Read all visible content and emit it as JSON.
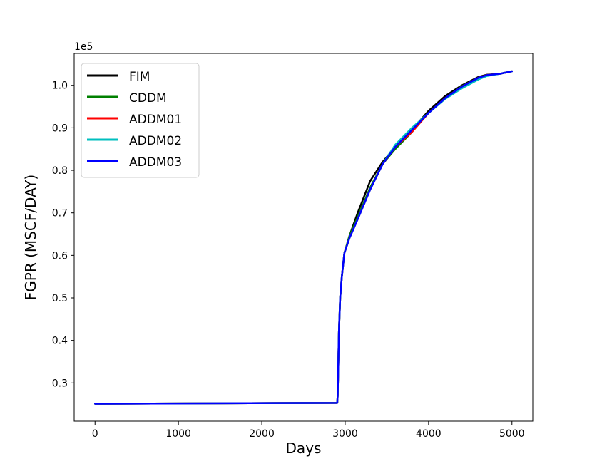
{
  "chart_data": {
    "type": "line",
    "xlabel": "Days",
    "ylabel": "FGPR  (MSCF/DAY)",
    "y_multiplier": "1e5",
    "xlim": [
      -250,
      5250
    ],
    "ylim": [
      0.21,
      1.075
    ],
    "xticks": [
      0,
      1000,
      2000,
      3000,
      4000,
      5000
    ],
    "xtick_labels": [
      "0",
      "1000",
      "2000",
      "3000",
      "4000",
      "5000"
    ],
    "yticks": [
      0.3,
      0.4,
      0.5,
      0.6,
      0.7,
      0.8,
      0.9,
      1.0
    ],
    "ytick_labels": [
      "0.3",
      "0.4",
      "0.5",
      "0.6",
      "0.7",
      "0.8",
      "0.9",
      "1.0"
    ],
    "grid": false,
    "legend_position": "top-left",
    "series": [
      {
        "name": "FIM",
        "color": "#000000",
        "points": [
          [
            0,
            0.251
          ],
          [
            2905,
            0.253
          ],
          [
            2910,
            0.27
          ],
          [
            2925,
            0.42
          ],
          [
            2940,
            0.5
          ],
          [
            2960,
            0.55
          ],
          [
            2990,
            0.605
          ],
          [
            3050,
            0.645
          ],
          [
            3150,
            0.7
          ],
          [
            3300,
            0.775
          ],
          [
            3450,
            0.82
          ],
          [
            3600,
            0.855
          ],
          [
            3800,
            0.895
          ],
          [
            4000,
            0.94
          ],
          [
            4200,
            0.975
          ],
          [
            4400,
            1.0
          ],
          [
            4600,
            1.02
          ],
          [
            4700,
            1.025
          ],
          [
            4850,
            1.027
          ],
          [
            5000,
            1.033
          ]
        ]
      },
      {
        "name": "CDDM",
        "color": "#008000",
        "points": [
          [
            0,
            0.251
          ],
          [
            2905,
            0.253
          ],
          [
            2910,
            0.27
          ],
          [
            2925,
            0.42
          ],
          [
            2940,
            0.5
          ],
          [
            2960,
            0.55
          ],
          [
            2990,
            0.605
          ],
          [
            3050,
            0.645
          ],
          [
            3150,
            0.69
          ],
          [
            3300,
            0.76
          ],
          [
            3450,
            0.815
          ],
          [
            3600,
            0.85
          ],
          [
            3800,
            0.89
          ],
          [
            4000,
            0.935
          ],
          [
            4200,
            0.97
          ],
          [
            4400,
            0.998
          ],
          [
            4600,
            1.018
          ],
          [
            4700,
            1.024
          ],
          [
            4850,
            1.027
          ],
          [
            5000,
            1.033
          ]
        ]
      },
      {
        "name": "ADDM01",
        "color": "#ff0000",
        "points": [
          [
            0,
            0.251
          ],
          [
            2905,
            0.253
          ],
          [
            2910,
            0.27
          ],
          [
            2925,
            0.42
          ],
          [
            2940,
            0.5
          ],
          [
            2960,
            0.55
          ],
          [
            2990,
            0.605
          ],
          [
            3050,
            0.64
          ],
          [
            3150,
            0.685
          ],
          [
            3300,
            0.755
          ],
          [
            3450,
            0.815
          ],
          [
            3600,
            0.855
          ],
          [
            3800,
            0.89
          ],
          [
            4000,
            0.935
          ],
          [
            4200,
            0.97
          ],
          [
            4400,
            0.997
          ],
          [
            4600,
            1.018
          ],
          [
            4700,
            1.024
          ],
          [
            4850,
            1.027
          ],
          [
            5000,
            1.033
          ]
        ]
      },
      {
        "name": "ADDM02",
        "color": "#00bfbf",
        "points": [
          [
            0,
            0.251
          ],
          [
            2905,
            0.253
          ],
          [
            2910,
            0.27
          ],
          [
            2925,
            0.42
          ],
          [
            2940,
            0.5
          ],
          [
            2960,
            0.55
          ],
          [
            2990,
            0.605
          ],
          [
            3050,
            0.64
          ],
          [
            3150,
            0.685
          ],
          [
            3300,
            0.755
          ],
          [
            3450,
            0.815
          ],
          [
            3600,
            0.86
          ],
          [
            3800,
            0.9
          ],
          [
            4000,
            0.935
          ],
          [
            4200,
            0.968
          ],
          [
            4400,
            0.993
          ],
          [
            4600,
            1.014
          ],
          [
            4700,
            1.022
          ],
          [
            4850,
            1.027
          ],
          [
            5000,
            1.033
          ]
        ]
      },
      {
        "name": "ADDM03",
        "color": "#0000ff",
        "points": [
          [
            0,
            0.251
          ],
          [
            2905,
            0.253
          ],
          [
            2910,
            0.27
          ],
          [
            2925,
            0.42
          ],
          [
            2940,
            0.5
          ],
          [
            2960,
            0.55
          ],
          [
            2990,
            0.605
          ],
          [
            3050,
            0.64
          ],
          [
            3150,
            0.685
          ],
          [
            3300,
            0.755
          ],
          [
            3450,
            0.815
          ],
          [
            3600,
            0.855
          ],
          [
            3800,
            0.895
          ],
          [
            4000,
            0.935
          ],
          [
            4200,
            0.97
          ],
          [
            4400,
            0.997
          ],
          [
            4600,
            1.018
          ],
          [
            4700,
            1.024
          ],
          [
            4850,
            1.027
          ],
          [
            5000,
            1.033
          ]
        ]
      }
    ]
  }
}
